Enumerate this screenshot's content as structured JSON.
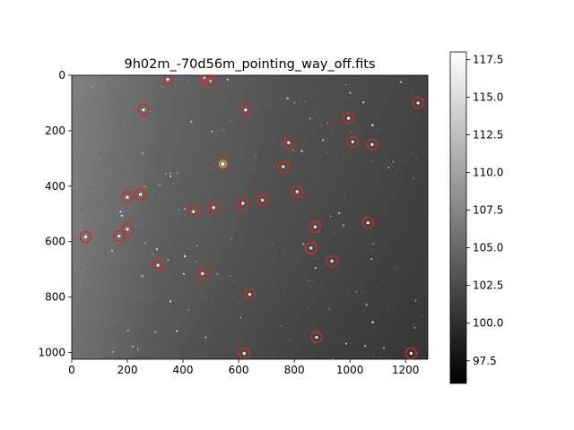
{
  "figure": {
    "title": "9h02m_-70d56m_pointing_way_off.fits"
  },
  "chart_data": {
    "type": "heatmap",
    "title": "9h02m_-70d56m_pointing_way_off.fits",
    "xlabel": "",
    "ylabel": "",
    "xlim": [
      0,
      1280
    ],
    "ylim": [
      1024,
      0
    ],
    "x_ticks": [
      "0",
      "200",
      "400",
      "600",
      "800",
      "1000",
      "1200"
    ],
    "y_ticks": [
      "0",
      "200",
      "400",
      "600",
      "800",
      "1000"
    ],
    "colormap": "gray",
    "colorbar": {
      "range": [
        96.0,
        118.0
      ],
      "ticks": [
        "97.5",
        "100.0",
        "102.5",
        "105.0",
        "107.5",
        "110.0",
        "112.5",
        "115.0",
        "117.5"
      ]
    },
    "detected_sources": [
      {
        "x": 345,
        "y": 15
      },
      {
        "x": 478,
        "y": 10
      },
      {
        "x": 497,
        "y": 20
      },
      {
        "x": 1245,
        "y": 100
      },
      {
        "x": 258,
        "y": 125
      },
      {
        "x": 625,
        "y": 125
      },
      {
        "x": 995,
        "y": 155
      },
      {
        "x": 1010,
        "y": 240
      },
      {
        "x": 1080,
        "y": 250
      },
      {
        "x": 780,
        "y": 243
      },
      {
        "x": 760,
        "y": 330
      },
      {
        "x": 810,
        "y": 420
      },
      {
        "x": 200,
        "y": 440
      },
      {
        "x": 247,
        "y": 430
      },
      {
        "x": 685,
        "y": 450
      },
      {
        "x": 615,
        "y": 462
      },
      {
        "x": 510,
        "y": 477
      },
      {
        "x": 437,
        "y": 492
      },
      {
        "x": 1065,
        "y": 532
      },
      {
        "x": 875,
        "y": 547
      },
      {
        "x": 200,
        "y": 555
      },
      {
        "x": 50,
        "y": 583
      },
      {
        "x": 170,
        "y": 580
      },
      {
        "x": 860,
        "y": 623
      },
      {
        "x": 935,
        "y": 670
      },
      {
        "x": 310,
        "y": 685
      },
      {
        "x": 470,
        "y": 715
      },
      {
        "x": 640,
        "y": 790
      },
      {
        "x": 880,
        "y": 945
      },
      {
        "x": 620,
        "y": 1003
      },
      {
        "x": 1220,
        "y": 1003
      }
    ],
    "highlighted_source": {
      "x": 543,
      "y": 320,
      "marker_color": "#8dc63f"
    },
    "marker_color": "#d62728"
  }
}
